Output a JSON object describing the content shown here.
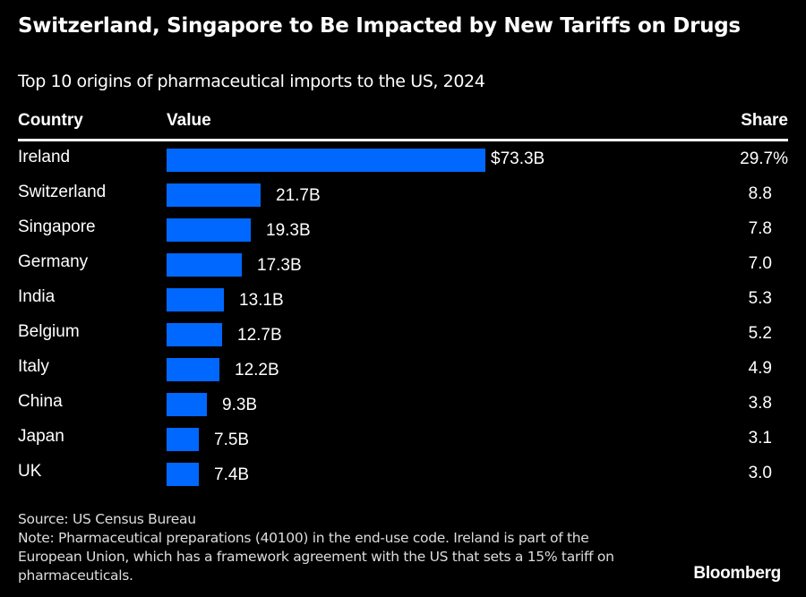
{
  "header": {
    "title": "Switzerland, Singapore to Be Impacted by New Tariffs on Drugs",
    "subtitle": "Top 10 origins of pharmaceutical imports to the US, 2024"
  },
  "columns": {
    "country": "Country",
    "value": "Value",
    "share": "Share"
  },
  "colors": {
    "background": "#000000",
    "bar": "#0068ff",
    "text": "#ffffff"
  },
  "chart_data": {
    "type": "bar",
    "orientation": "horizontal",
    "title": "Switzerland, Singapore to Be Impacted by New Tariffs on Drugs",
    "subtitle": "Top 10 origins of pharmaceutical imports to the US, 2024",
    "xlabel": "Value",
    "ylabel": "Country",
    "unit": "USD billions",
    "categories": [
      "Ireland",
      "Switzerland",
      "Singapore",
      "Germany",
      "India",
      "Belgium",
      "Italy",
      "China",
      "Japan",
      "UK"
    ],
    "values": [
      73.3,
      21.7,
      19.3,
      17.3,
      13.1,
      12.7,
      12.2,
      9.3,
      7.5,
      7.4
    ],
    "value_labels": [
      "$73.3B",
      "21.7B",
      "19.3B",
      "17.3B",
      "13.1B",
      "12.7B",
      "12.2B",
      "9.3B",
      "7.5B",
      "7.4B"
    ],
    "share": [
      29.7,
      8.8,
      7.8,
      7.0,
      5.3,
      5.2,
      4.9,
      3.8,
      3.1,
      3.0
    ],
    "share_labels": [
      "29.7%",
      "8.8",
      "7.8",
      "7.0",
      "5.3",
      "5.2",
      "4.9",
      "3.8",
      "3.1",
      "3.0"
    ],
    "xlim": [
      0,
      73.3
    ],
    "grid": false,
    "legend": "none"
  },
  "footer": {
    "source": "Source: US Census Bureau",
    "note": "Note: Pharmaceutical preparations (40100) in the end-use code. Ireland is part of the European Union, which has a framework agreement with the US that sets a 15% tariff on pharmaceuticals.",
    "logo": "Bloomberg"
  }
}
